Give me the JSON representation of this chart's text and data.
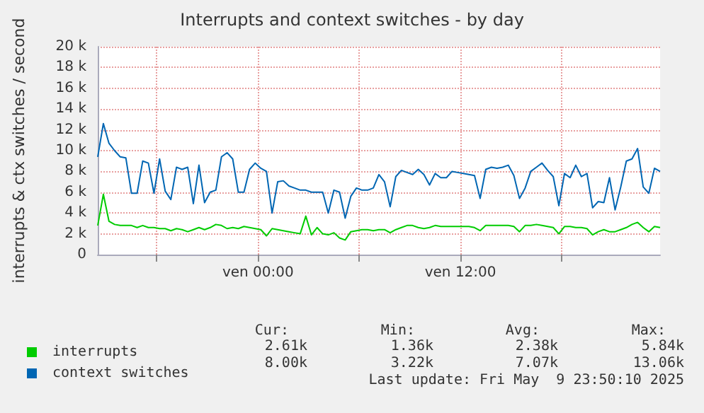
{
  "chart_data": {
    "type": "line",
    "title": "Interrupts and context switches - by day",
    "ylabel": "interrupts & ctx switches / second",
    "x": [
      "2025-05-08T14:30",
      "2025-05-08T14:50",
      "2025-05-08T15:10",
      "2025-05-08T15:30",
      "2025-05-08T15:50",
      "2025-05-08T16:10",
      "2025-05-08T16:30",
      "2025-05-08T16:50",
      "2025-05-08T17:10",
      "2025-05-08T17:30",
      "2025-05-08T17:50",
      "2025-05-08T18:10",
      "2025-05-08T18:30",
      "2025-05-08T18:50",
      "2025-05-08T19:10",
      "2025-05-08T19:30",
      "2025-05-08T19:50",
      "2025-05-08T20:10",
      "2025-05-08T20:30",
      "2025-05-08T20:50",
      "2025-05-08T21:10",
      "2025-05-08T21:30",
      "2025-05-08T21:50",
      "2025-05-08T22:10",
      "2025-05-08T22:30",
      "2025-05-08T22:50",
      "2025-05-08T23:10",
      "2025-05-08T23:30",
      "2025-05-08T23:50",
      "2025-05-09T00:10",
      "2025-05-09T00:30",
      "2025-05-09T00:50",
      "2025-05-09T01:10",
      "2025-05-09T01:30",
      "2025-05-09T01:50",
      "2025-05-09T02:10",
      "2025-05-09T02:30",
      "2025-05-09T02:50",
      "2025-05-09T03:10",
      "2025-05-09T03:30",
      "2025-05-09T03:50",
      "2025-05-09T04:10",
      "2025-05-09T04:30",
      "2025-05-09T04:50",
      "2025-05-09T05:10",
      "2025-05-09T05:30",
      "2025-05-09T05:50",
      "2025-05-09T06:10",
      "2025-05-09T06:30",
      "2025-05-09T06:50",
      "2025-05-09T07:10",
      "2025-05-09T07:30",
      "2025-05-09T07:50",
      "2025-05-09T08:10",
      "2025-05-09T08:30",
      "2025-05-09T08:50",
      "2025-05-09T09:10",
      "2025-05-09T09:30",
      "2025-05-09T09:50",
      "2025-05-09T10:10",
      "2025-05-09T10:30",
      "2025-05-09T10:50",
      "2025-05-09T11:10",
      "2025-05-09T11:30",
      "2025-05-09T11:50",
      "2025-05-09T12:10",
      "2025-05-09T12:30",
      "2025-05-09T12:50",
      "2025-05-09T13:10",
      "2025-05-09T13:30",
      "2025-05-09T13:50",
      "2025-05-09T14:10",
      "2025-05-09T14:30",
      "2025-05-09T14:50",
      "2025-05-09T15:10",
      "2025-05-09T15:30",
      "2025-05-09T15:50",
      "2025-05-09T16:10",
      "2025-05-09T16:30",
      "2025-05-09T16:50",
      "2025-05-09T17:10",
      "2025-05-09T17:30",
      "2025-05-09T17:50",
      "2025-05-09T18:10",
      "2025-05-09T18:30",
      "2025-05-09T18:50",
      "2025-05-09T19:10",
      "2025-05-09T19:30",
      "2025-05-09T19:50",
      "2025-05-09T20:10",
      "2025-05-09T20:30",
      "2025-05-09T20:50",
      "2025-05-09T21:10",
      "2025-05-09T21:30",
      "2025-05-09T21:50",
      "2025-05-09T22:10",
      "2025-05-09T22:30",
      "2025-05-09T22:50",
      "2025-05-09T23:10",
      "2025-05-09T23:30",
      "2025-05-09T23:50"
    ],
    "series": [
      {
        "name": "interrupts",
        "color": "#00cc00",
        "values": [
          2800,
          5800,
          3200,
          2900,
          2800,
          2800,
          2800,
          2600,
          2800,
          2600,
          2600,
          2500,
          2500,
          2300,
          2500,
          2400,
          2200,
          2400,
          2600,
          2400,
          2600,
          2900,
          2800,
          2500,
          2600,
          2500,
          2700,
          2600,
          2500,
          2400,
          1800,
          2500,
          2400,
          2300,
          2200,
          2100,
          2000,
          3700,
          1900,
          2600,
          2000,
          1900,
          2100,
          1600,
          1400,
          2200,
          2300,
          2400,
          2400,
          2300,
          2400,
          2400,
          2100,
          2400,
          2600,
          2800,
          2800,
          2600,
          2500,
          2600,
          2800,
          2700,
          2700,
          2700,
          2700,
          2700,
          2700,
          2600,
          2300,
          2800,
          2800,
          2800,
          2800,
          2800,
          2700,
          2200,
          2800,
          2800,
          2900,
          2800,
          2700,
          2600,
          2000,
          2700,
          2700,
          2600,
          2600,
          2500,
          1900,
          2200,
          2400,
          2200,
          2200,
          2400,
          2600,
          2900,
          3100,
          2600,
          2200,
          2700,
          2600
        ]
      },
      {
        "name": "context switches",
        "color": "#0066b3",
        "values": [
          9400,
          12600,
          10700,
          10000,
          9400,
          9300,
          5900,
          5900,
          9000,
          8800,
          5900,
          9200,
          6100,
          5300,
          8400,
          8200,
          8400,
          4900,
          8600,
          5000,
          6000,
          6200,
          9400,
          9800,
          9200,
          6000,
          6000,
          8200,
          8800,
          8300,
          8000,
          4000,
          7000,
          7100,
          6600,
          6400,
          6200,
          6200,
          6000,
          6000,
          6000,
          4000,
          6200,
          6000,
          3500,
          5600,
          6400,
          6200,
          6200,
          6400,
          7700,
          7000,
          4600,
          7500,
          8100,
          7900,
          7700,
          8200,
          7700,
          6700,
          7800,
          7400,
          7400,
          8000,
          7900,
          7800,
          7700,
          7600,
          5400,
          8200,
          8400,
          8300,
          8400,
          8600,
          7600,
          5400,
          6400,
          8000,
          8400,
          8800,
          8100,
          7500,
          4700,
          7800,
          7400,
          8600,
          7500,
          7800,
          4500,
          5100,
          5000,
          7400,
          4300,
          6500,
          9000,
          9200,
          10200,
          6500,
          5900,
          8300,
          8000
        ]
      }
    ],
    "xlim": [
      "2025-05-08T14:30",
      "2025-05-09T23:50"
    ],
    "xticks": [
      {
        "value": "2025-05-08T18:00",
        "label": null
      },
      {
        "value": "2025-05-09T00:00",
        "label": "ven 00:00"
      },
      {
        "value": "2025-05-09T06:00",
        "label": null
      },
      {
        "value": "2025-05-09T12:00",
        "label": "ven 12:00"
      },
      {
        "value": "2025-05-09T18:00",
        "label": null
      }
    ],
    "ylim": [
      0,
      20000
    ],
    "yticks": [
      0,
      {
        "value": 2000,
        "label": "2 k"
      },
      {
        "value": 4000,
        "label": "4 k"
      },
      {
        "value": 6000,
        "label": "6 k"
      },
      {
        "value": 8000,
        "label": "8 k"
      },
      {
        "value": 10000,
        "label": "10 k"
      },
      {
        "value": 12000,
        "label": "12 k"
      },
      {
        "value": 14000,
        "label": "14 k"
      },
      {
        "value": 16000,
        "label": "16 k"
      },
      {
        "value": 18000,
        "label": "18 k"
      },
      {
        "value": 20000,
        "label": "20 k"
      }
    ],
    "grid": true,
    "legend": "bottom",
    "marker": "none",
    "line_style": "solid",
    "annotations": [
      "Cur:",
      "Min:",
      "Avg:",
      "Max:",
      "2.61k",
      "1.36k",
      "2.38k",
      "5.84k",
      "8.00k",
      "3.22k",
      "7.07k",
      "13.06k",
      "Last update: Fri May  9 23:50:10 2025"
    ]
  }
}
